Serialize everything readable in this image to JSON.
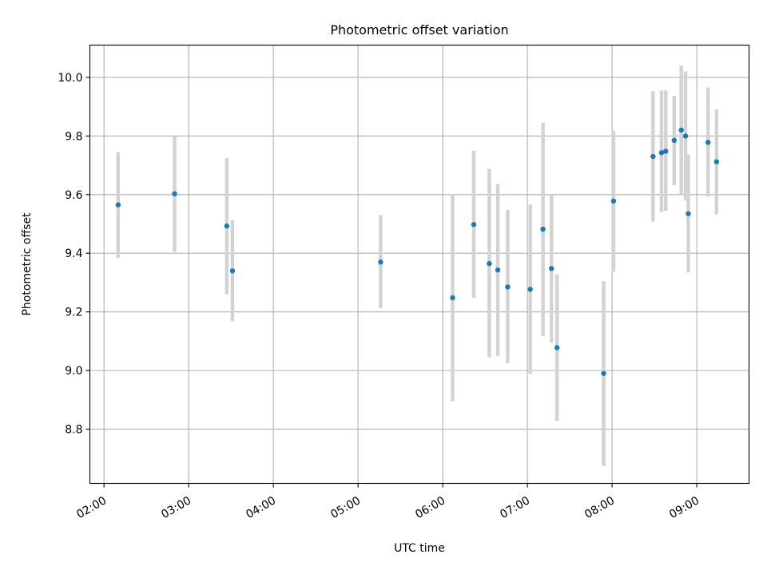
{
  "chart_data": {
    "type": "scatter",
    "title": "Photometric offset variation",
    "xlabel": "UTC time",
    "ylabel": "Photometric offset",
    "x_tick_labels": [
      "02:00",
      "03:00",
      "04:00",
      "05:00",
      "06:00",
      "07:00",
      "08:00",
      "09:00"
    ],
    "y_tick_labels": [
      "8.8",
      "9.0",
      "9.2",
      "9.4",
      "9.6",
      "9.8",
      "10.0"
    ],
    "xlim": [
      "01:50",
      "09:37"
    ],
    "ylim": [
      8.615,
      10.11
    ],
    "grid": true,
    "point_color": "#1f77b4",
    "errorbar_color": "#d3d3d3",
    "points": [
      {
        "t": "02:10",
        "y": 9.565,
        "lo": 9.385,
        "hi": 9.745
      },
      {
        "t": "02:50",
        "y": 9.603,
        "lo": 9.405,
        "hi": 9.8
      },
      {
        "t": "03:27",
        "y": 9.493,
        "lo": 9.26,
        "hi": 9.725
      },
      {
        "t": "03:31",
        "y": 9.34,
        "lo": 9.168,
        "hi": 9.513
      },
      {
        "t": "05:16",
        "y": 9.37,
        "lo": 9.213,
        "hi": 9.53
      },
      {
        "t": "06:07",
        "y": 9.248,
        "lo": 8.895,
        "hi": 9.6
      },
      {
        "t": "06:22",
        "y": 9.498,
        "lo": 9.248,
        "hi": 9.75
      },
      {
        "t": "06:33",
        "y": 9.365,
        "lo": 9.045,
        "hi": 9.688
      },
      {
        "t": "06:39",
        "y": 9.343,
        "lo": 9.05,
        "hi": 9.636
      },
      {
        "t": "06:46",
        "y": 9.285,
        "lo": 9.025,
        "hi": 9.548
      },
      {
        "t": "07:02",
        "y": 9.277,
        "lo": 8.988,
        "hi": 9.567
      },
      {
        "t": "07:11",
        "y": 9.482,
        "lo": 9.118,
        "hi": 9.845
      },
      {
        "t": "07:17",
        "y": 9.348,
        "lo": 9.095,
        "hi": 9.6
      },
      {
        "t": "07:21",
        "y": 9.078,
        "lo": 8.828,
        "hi": 9.328
      },
      {
        "t": "07:54",
        "y": 8.99,
        "lo": 8.675,
        "hi": 9.305
      },
      {
        "t": "08:01",
        "y": 9.578,
        "lo": 9.338,
        "hi": 9.818
      },
      {
        "t": "08:29",
        "y": 9.73,
        "lo": 9.508,
        "hi": 9.953
      },
      {
        "t": "08:35",
        "y": 9.743,
        "lo": 9.54,
        "hi": 9.955
      },
      {
        "t": "08:38",
        "y": 9.748,
        "lo": 9.545,
        "hi": 9.955
      },
      {
        "t": "08:44",
        "y": 9.785,
        "lo": 9.632,
        "hi": 9.937
      },
      {
        "t": "08:49",
        "y": 9.82,
        "lo": 9.6,
        "hi": 10.04
      },
      {
        "t": "08:52",
        "y": 9.8,
        "lo": 9.58,
        "hi": 10.02
      },
      {
        "t": "08:54",
        "y": 9.535,
        "lo": 9.335,
        "hi": 9.737
      },
      {
        "t": "09:08",
        "y": 9.778,
        "lo": 9.593,
        "hi": 9.965
      },
      {
        "t": "09:14",
        "y": 9.712,
        "lo": 9.533,
        "hi": 9.89
      }
    ]
  }
}
